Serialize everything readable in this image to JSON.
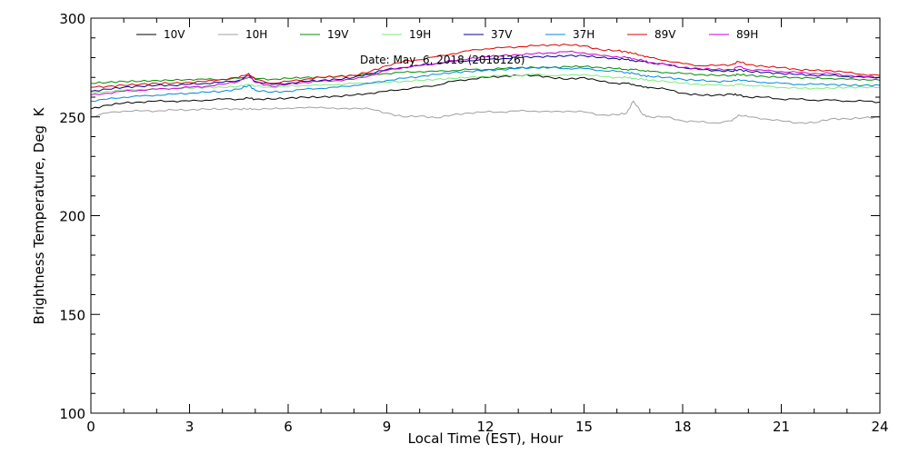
{
  "chart_data": {
    "type": "line",
    "title": "",
    "annotation": "Date: May  6, 2018 (2018126)",
    "xlabel": "Local Time (EST), Hour",
    "ylabel": "Brightness Temperature, Deg  K",
    "xlim": [
      0,
      24
    ],
    "ylim": [
      100,
      300
    ],
    "xticks": [
      0,
      3,
      6,
      9,
      12,
      15,
      18,
      21,
      24
    ],
    "yticks": [
      100,
      150,
      200,
      250,
      300
    ],
    "grid": false,
    "legend_position": "top",
    "x": [
      0,
      0.5,
      1,
      1.5,
      2,
      2.5,
      3,
      3.5,
      4,
      4.5,
      4.8,
      5,
      5.5,
      6,
      6.5,
      7,
      7.5,
      8,
      8.5,
      9,
      9.5,
      10,
      10.5,
      11,
      11.5,
      12,
      12.5,
      13,
      13.5,
      14,
      14.5,
      15,
      15.5,
      16,
      16.3,
      16.5,
      16.8,
      17,
      17.5,
      18,
      18.5,
      19,
      19.5,
      19.7,
      20,
      20.5,
      21,
      21.5,
      22,
      22.5,
      23,
      23.5,
      24
    ],
    "series": [
      {
        "name": "10V",
        "color": "#000000",
        "values": [
          254.0,
          256.0,
          257.0,
          257.5,
          258.0,
          258.0,
          258.0,
          258.5,
          259.0,
          259.0,
          259.5,
          259.0,
          259.0,
          259.5,
          260.0,
          260.0,
          260.5,
          261.0,
          262.0,
          263.0,
          264.0,
          265.0,
          266.0,
          268.0,
          269.0,
          270.0,
          270.5,
          271.0,
          271.0,
          270.0,
          269.0,
          270.0,
          268.0,
          267.0,
          267.0,
          266.5,
          265.0,
          265.0,
          264.0,
          262.0,
          261.0,
          261.0,
          261.5,
          261.0,
          260.0,
          260.0,
          259.0,
          259.0,
          258.5,
          258.5,
          258.0,
          258.0,
          257.5
        ]
      },
      {
        "name": "10H",
        "color": "#a0a0a0",
        "values": [
          250.0,
          252.0,
          253.0,
          253.0,
          253.0,
          253.5,
          253.5,
          254.0,
          254.0,
          254.0,
          254.0,
          254.0,
          254.0,
          254.5,
          254.5,
          255.0,
          254.0,
          254.5,
          254.0,
          252.0,
          250.0,
          250.5,
          249.5,
          251.0,
          252.0,
          252.5,
          252.5,
          253.0,
          253.0,
          252.5,
          253.0,
          252.5,
          251.0,
          251.0,
          252.0,
          258.0,
          251.0,
          250.0,
          250.0,
          248.0,
          247.5,
          247.0,
          248.0,
          251.0,
          250.0,
          249.0,
          248.0,
          247.0,
          247.0,
          249.0,
          249.0,
          249.5,
          250.0
        ]
      },
      {
        "name": "19V",
        "color": "#008c00",
        "values": [
          267.0,
          267.5,
          268.0,
          268.0,
          268.5,
          268.5,
          269.0,
          269.0,
          269.0,
          269.5,
          270.0,
          269.5,
          269.0,
          269.5,
          270.0,
          270.0,
          270.5,
          271.0,
          271.5,
          272.0,
          272.5,
          273.0,
          273.0,
          273.5,
          274.0,
          274.0,
          274.5,
          275.0,
          275.0,
          275.0,
          275.5,
          275.5,
          275.0,
          274.5,
          274.0,
          274.0,
          273.5,
          273.0,
          272.5,
          272.0,
          271.5,
          271.0,
          271.0,
          271.5,
          271.0,
          270.5,
          270.0,
          270.0,
          269.5,
          269.5,
          269.0,
          269.0,
          268.5
        ]
      },
      {
        "name": "19H",
        "color": "#78ee78",
        "values": [
          262.0,
          263.0,
          263.5,
          264.0,
          264.0,
          264.5,
          264.5,
          265.0,
          265.0,
          265.5,
          266.5,
          265.5,
          265.0,
          265.5,
          266.0,
          266.0,
          266.5,
          267.0,
          267.0,
          267.5,
          268.0,
          268.5,
          269.0,
          269.5,
          270.0,
          270.5,
          271.0,
          271.0,
          271.5,
          271.0,
          271.0,
          271.5,
          270.5,
          270.0,
          270.0,
          269.5,
          269.0,
          268.5,
          268.0,
          267.0,
          266.5,
          266.0,
          266.0,
          266.5,
          266.0,
          265.5,
          265.0,
          264.5,
          264.5,
          264.5,
          265.0,
          265.0,
          265.0
        ]
      },
      {
        "name": "37V",
        "color": "#000090",
        "values": [
          263.0,
          264.0,
          265.0,
          265.5,
          266.0,
          266.0,
          266.5,
          267.0,
          267.5,
          268.5,
          271.0,
          268.0,
          266.5,
          267.0,
          268.0,
          268.5,
          269.0,
          270.0,
          272.0,
          274.0,
          275.0,
          276.0,
          277.0,
          278.0,
          278.5,
          279.0,
          279.5,
          280.0,
          280.5,
          280.5,
          281.0,
          281.0,
          280.0,
          279.5,
          279.0,
          278.5,
          278.0,
          277.5,
          276.5,
          275.0,
          274.0,
          273.5,
          273.0,
          274.0,
          273.0,
          272.5,
          272.0,
          271.5,
          271.0,
          271.0,
          270.5,
          270.0,
          270.0
        ]
      },
      {
        "name": "37H",
        "color": "#0088dd",
        "values": [
          258.0,
          259.0,
          260.0,
          260.5,
          261.0,
          261.5,
          262.0,
          262.5,
          263.0,
          264.0,
          266.0,
          263.5,
          262.5,
          263.0,
          264.0,
          264.5,
          265.0,
          266.0,
          267.0,
          268.5,
          269.5,
          270.5,
          271.5,
          272.5,
          273.0,
          273.5,
          274.0,
          274.5,
          275.0,
          275.0,
          274.5,
          274.5,
          273.5,
          273.0,
          272.5,
          272.0,
          271.0,
          270.5,
          270.0,
          269.0,
          268.5,
          268.0,
          268.0,
          269.0,
          268.0,
          267.5,
          267.0,
          266.5,
          266.5,
          266.5,
          266.0,
          266.0,
          266.0
        ]
      },
      {
        "name": "89V",
        "color": "#dd0000",
        "values": [
          265.0,
          265.5,
          266.0,
          266.5,
          267.0,
          267.0,
          267.5,
          268.0,
          269.0,
          270.0,
          272.0,
          269.0,
          267.0,
          268.0,
          269.0,
          270.0,
          270.5,
          271.0,
          273.0,
          276.0,
          278.0,
          279.0,
          280.5,
          282.0,
          283.5,
          284.5,
          285.0,
          285.5,
          286.0,
          286.5,
          286.5,
          286.0,
          284.0,
          283.5,
          283.0,
          282.0,
          281.0,
          280.0,
          278.5,
          277.0,
          276.0,
          276.0,
          276.5,
          278.0,
          276.5,
          275.5,
          275.0,
          274.0,
          273.5,
          273.5,
          272.5,
          271.5,
          271.0
        ]
      },
      {
        "name": "89H",
        "color": "#cc00cc",
        "values": [
          261.0,
          262.0,
          263.0,
          263.5,
          264.0,
          264.5,
          265.0,
          265.5,
          266.5,
          268.0,
          271.0,
          267.5,
          265.5,
          266.5,
          267.5,
          268.0,
          268.5,
          269.0,
          271.0,
          273.5,
          275.0,
          276.0,
          277.0,
          278.5,
          279.5,
          280.5,
          281.0,
          281.5,
          282.0,
          282.5,
          283.0,
          282.5,
          281.0,
          280.5,
          280.0,
          279.5,
          278.5,
          277.5,
          276.5,
          275.0,
          274.5,
          274.0,
          274.0,
          275.5,
          274.0,
          273.5,
          273.0,
          272.5,
          272.0,
          272.0,
          271.0,
          270.5,
          270.0
        ]
      }
    ]
  }
}
